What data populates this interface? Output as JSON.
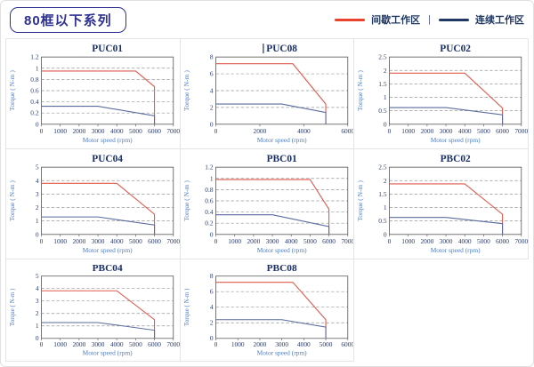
{
  "page": {
    "title": "80框以下系列",
    "background": "#ffffff",
    "accent_navy": "#2e3192"
  },
  "legend": {
    "intermittent": {
      "label": "间歇工作区",
      "color": "#e8432c"
    },
    "separator": "|",
    "continuous": {
      "label": "连续工作区",
      "color": "#1f3864"
    }
  },
  "chart_style": {
    "line_red": "#e05a4e",
    "line_blue": "#5a6b9e",
    "grid_color": "#999999",
    "frame_color": "#666666",
    "title_color": "#1a2f66",
    "tick_color": "#2a3a6e",
    "axis_label_color": "#4a7cc9",
    "grid_dashed": true,
    "legend_position": "top-right"
  },
  "chart_data": [
    {
      "type": "line",
      "title": "PUC01",
      "xlabel": "Motor speed (rpm)",
      "ylabel": "Torque ( N-m )",
      "xlim": [
        0,
        7000
      ],
      "xtick": 1000,
      "ylim": [
        0,
        1.2
      ],
      "ytick": 0.2,
      "series": [
        {
          "name": "间歇工作区",
          "color": "#e05a4e",
          "points": [
            [
              0,
              0.95
            ],
            [
              5000,
              0.95
            ],
            [
              6000,
              0.67
            ],
            [
              6000,
              0
            ]
          ]
        },
        {
          "name": "连续工作区",
          "color": "#5a6b9e",
          "points": [
            [
              0,
              0.32
            ],
            [
              3000,
              0.32
            ],
            [
              6000,
              0.15
            ],
            [
              6000,
              0
            ]
          ]
        }
      ]
    },
    {
      "type": "line",
      "title": "PUC08",
      "caret": true,
      "xlabel": "Motor speed (rpm)",
      "ylabel": "Torque ( N-m )",
      "xlim": [
        0,
        6000
      ],
      "xtick": 2000,
      "ylim": [
        0,
        8
      ],
      "ytick": 2,
      "series": [
        {
          "name": "间歇工作区",
          "color": "#e05a4e",
          "points": [
            [
              0,
              7.2
            ],
            [
              3500,
              7.2
            ],
            [
              5000,
              2.4
            ],
            [
              5000,
              0
            ]
          ]
        },
        {
          "name": "连续工作区",
          "color": "#5a6b9e",
          "points": [
            [
              0,
              2.4
            ],
            [
              3000,
              2.4
            ],
            [
              5000,
              1.4
            ],
            [
              5000,
              0
            ]
          ]
        }
      ]
    },
    {
      "type": "line",
      "title": "PUC02",
      "xlabel": "Motor speed (rpm)",
      "ylabel": "Torque ( N-m )",
      "xlim": [
        0,
        7000
      ],
      "xtick": 1000,
      "ylim": [
        0,
        2.5
      ],
      "ytick": 0.5,
      "series": [
        {
          "name": "间歇工作区",
          "color": "#e05a4e",
          "points": [
            [
              0,
              1.9
            ],
            [
              4000,
              1.9
            ],
            [
              6000,
              0.6
            ],
            [
              6000,
              0
            ]
          ]
        },
        {
          "name": "连续工作区",
          "color": "#5a6b9e",
          "points": [
            [
              0,
              0.62
            ],
            [
              3000,
              0.62
            ],
            [
              6000,
              0.35
            ],
            [
              6000,
              0
            ]
          ]
        }
      ]
    },
    {
      "type": "line",
      "title": "PUC04",
      "xlabel": "Motor speed (rpm)",
      "ylabel": "Torque ( N-m )",
      "xlim": [
        0,
        7000
      ],
      "xtick": 1000,
      "ylim": [
        0,
        5
      ],
      "ytick": 1,
      "series": [
        {
          "name": "间歇工作区",
          "color": "#e05a4e",
          "points": [
            [
              0,
              3.8
            ],
            [
              4000,
              3.8
            ],
            [
              6000,
              1.5
            ],
            [
              6000,
              0
            ]
          ]
        },
        {
          "name": "连续工作区",
          "color": "#5a6b9e",
          "points": [
            [
              0,
              1.3
            ],
            [
              3000,
              1.3
            ],
            [
              6000,
              0.7
            ],
            [
              6000,
              0
            ]
          ]
        }
      ]
    },
    {
      "type": "line",
      "title": "PBC01",
      "xlabel": "Motor speed (rpm)",
      "ylabel": "Torque ( N-m )",
      "xlim": [
        0,
        7000
      ],
      "xtick": 1000,
      "ylim": [
        0,
        1.2
      ],
      "ytick": 0.2,
      "series": [
        {
          "name": "间歇工作区",
          "color": "#e05a4e",
          "points": [
            [
              0,
              0.98
            ],
            [
              5000,
              0.98
            ],
            [
              6000,
              0.45
            ],
            [
              6000,
              0
            ]
          ]
        },
        {
          "name": "连续工作区",
          "color": "#5a6b9e",
          "points": [
            [
              0,
              0.35
            ],
            [
              3000,
              0.35
            ],
            [
              6000,
              0.14
            ],
            [
              6000,
              0
            ]
          ]
        }
      ]
    },
    {
      "type": "line",
      "title": "PBC02",
      "xlabel": "Motor speed (rpm)",
      "ylabel": "Torque ( N-m )",
      "xlim": [
        0,
        7000
      ],
      "xtick": 1000,
      "ylim": [
        0,
        2.5
      ],
      "ytick": 0.5,
      "series": [
        {
          "name": "间歇工作区",
          "color": "#e05a4e",
          "points": [
            [
              0,
              1.88
            ],
            [
              4000,
              1.88
            ],
            [
              6000,
              0.75
            ],
            [
              6000,
              0
            ]
          ]
        },
        {
          "name": "连续工作区",
          "color": "#5a6b9e",
          "points": [
            [
              0,
              0.63
            ],
            [
              3000,
              0.63
            ],
            [
              6000,
              0.4
            ],
            [
              6000,
              0
            ]
          ]
        }
      ]
    },
    {
      "type": "line",
      "title": "PBC04",
      "xlabel": "Motor speed (rpm)",
      "ylabel": "Torque ( N-m )",
      "xlim": [
        0,
        7000
      ],
      "xtick": 1000,
      "ylim": [
        0,
        5
      ],
      "ytick": 1,
      "series": [
        {
          "name": "间歇工作区",
          "color": "#e05a4e",
          "points": [
            [
              0,
              3.82
            ],
            [
              4000,
              3.82
            ],
            [
              6000,
              1.5
            ],
            [
              6000,
              0
            ]
          ]
        },
        {
          "name": "连续工作区",
          "color": "#5a6b9e",
          "points": [
            [
              0,
              1.27
            ],
            [
              3000,
              1.27
            ],
            [
              6000,
              0.65
            ],
            [
              6000,
              0
            ]
          ]
        }
      ]
    },
    {
      "type": "line",
      "title": "PBC08",
      "xlabel": "Motor speed (rpm)",
      "ylabel": "Torque ( N-m )",
      "xlim": [
        0,
        6000
      ],
      "xtick": 1000,
      "ylim": [
        0,
        8
      ],
      "ytick": 2,
      "series": [
        {
          "name": "间歇工作区",
          "color": "#e05a4e",
          "points": [
            [
              0,
              7.2
            ],
            [
              3500,
              7.2
            ],
            [
              5000,
              2.4
            ],
            [
              5000,
              0
            ]
          ]
        },
        {
          "name": "连续工作区",
          "color": "#5a6b9e",
          "points": [
            [
              0,
              2.4
            ],
            [
              3000,
              2.4
            ],
            [
              5000,
              1.45
            ],
            [
              5000,
              0
            ]
          ]
        }
      ]
    }
  ]
}
